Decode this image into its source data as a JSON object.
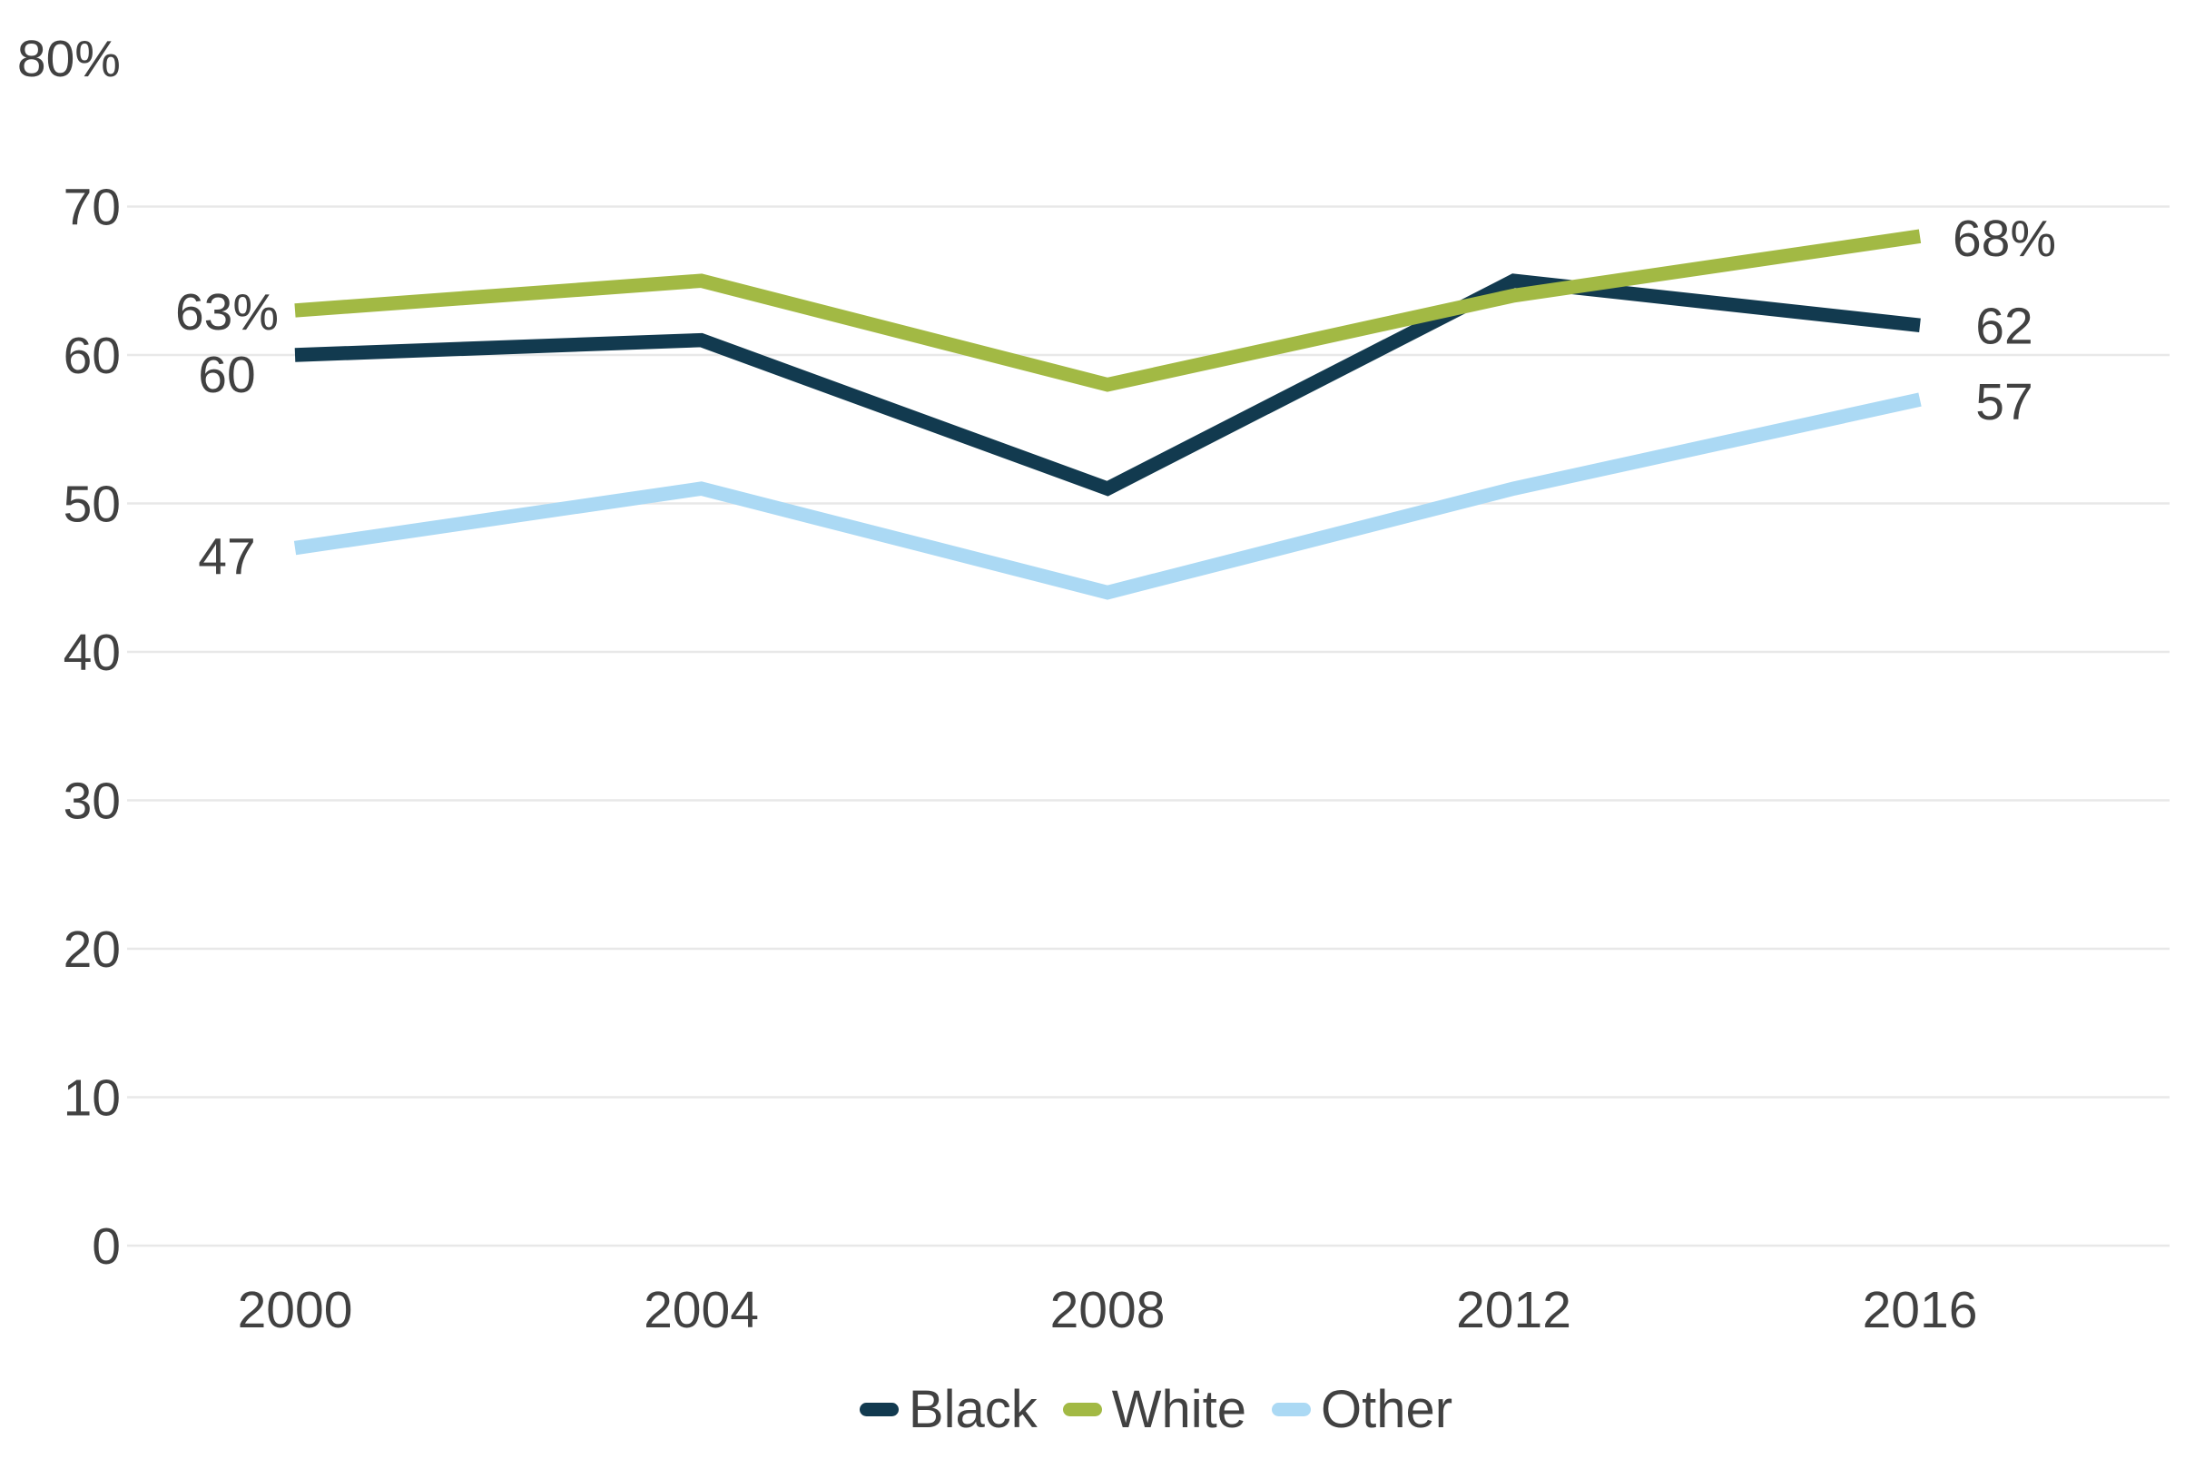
{
  "chart_data": {
    "type": "line",
    "categories": [
      "2000",
      "2004",
      "2008",
      "2012",
      "2016"
    ],
    "series": [
      {
        "name": "Black",
        "color": "#123a4f",
        "values": [
          60,
          61,
          51,
          65,
          62
        ],
        "start_label": "60",
        "end_label": "62"
      },
      {
        "name": "White",
        "color": "#a2b944",
        "values": [
          63,
          65,
          58,
          64,
          68
        ],
        "start_label": "63%",
        "end_label": "68%"
      },
      {
        "name": "Other",
        "color": "#abd9f4",
        "values": [
          47,
          51,
          44,
          51,
          57
        ],
        "start_label": "47",
        "end_label": "57"
      }
    ],
    "title": "",
    "xlabel": "",
    "ylabel": "",
    "ylim": [
      0,
      80
    ],
    "yticks": [
      0,
      10,
      20,
      30,
      40,
      50,
      60,
      70,
      80
    ],
    "ytick_labels": [
      "0",
      "10",
      "20",
      "30",
      "40",
      "50",
      "60",
      "70",
      "80%"
    ],
    "gridlines": {
      "horizontal": true,
      "vertical": false,
      "top_tick_has_gridline": false
    },
    "legend": {
      "position": "bottom-center",
      "items": [
        "Black",
        "White",
        "Other"
      ]
    }
  },
  "colors": {
    "text": "#414141",
    "gridline": "#e8e8e8",
    "background": "#ffffff"
  }
}
